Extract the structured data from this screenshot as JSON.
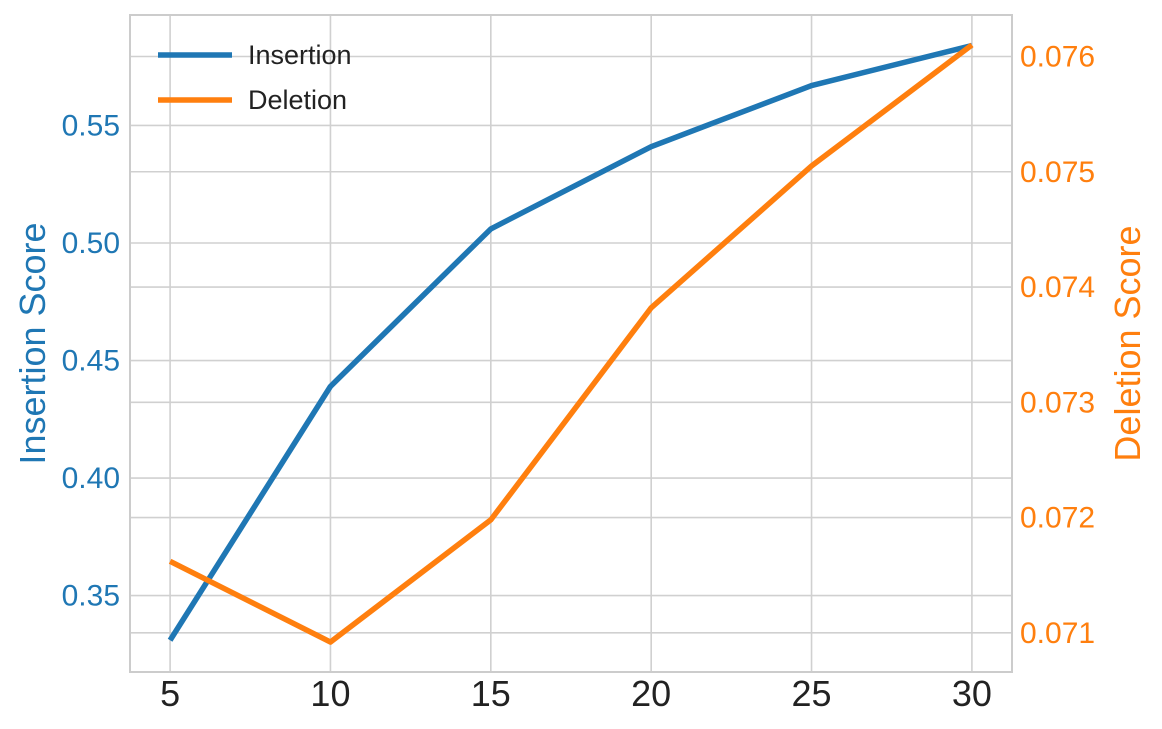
{
  "chart_data": {
    "type": "line",
    "x": [
      5,
      10,
      15,
      20,
      25,
      30
    ],
    "xticks": [
      "5",
      "10",
      "15",
      "20",
      "25",
      "30"
    ],
    "xlim": [
      3.75,
      31.25
    ],
    "series": [
      {
        "name": "Insertion",
        "axis": "left",
        "color": "#1f77b4",
        "values": [
          0.331,
          0.439,
          0.506,
          0.541,
          0.567,
          0.584
        ]
      },
      {
        "name": "Deletion",
        "axis": "right",
        "color": "#ff7f0e",
        "values": [
          0.07162,
          0.07092,
          0.07198,
          0.07382,
          0.07505,
          0.0761
        ]
      }
    ],
    "y_left": {
      "label": "Insertion Score",
      "color": "#1f77b4",
      "lim": [
        0.3175,
        0.597
      ],
      "ticks": [
        0.35,
        0.4,
        0.45,
        0.5,
        0.55
      ],
      "tick_labels": [
        "0.35",
        "0.40",
        "0.45",
        "0.50",
        "0.55"
      ]
    },
    "y_right": {
      "label": "Deletion Score",
      "color": "#ff7f0e",
      "lim": [
        0.07066,
        0.07636
      ],
      "ticks": [
        0.071,
        0.072,
        0.073,
        0.074,
        0.075,
        0.076
      ],
      "tick_labels": [
        "0.071",
        "0.072",
        "0.073",
        "0.074",
        "0.075",
        "0.076"
      ]
    },
    "grid": true,
    "legend": {
      "position": "top-left",
      "entries": [
        "Insertion",
        "Deletion"
      ]
    },
    "colors": {
      "grid": "#d0d0d0",
      "frame": "#cccccc",
      "xtick_text": "#222222"
    }
  }
}
